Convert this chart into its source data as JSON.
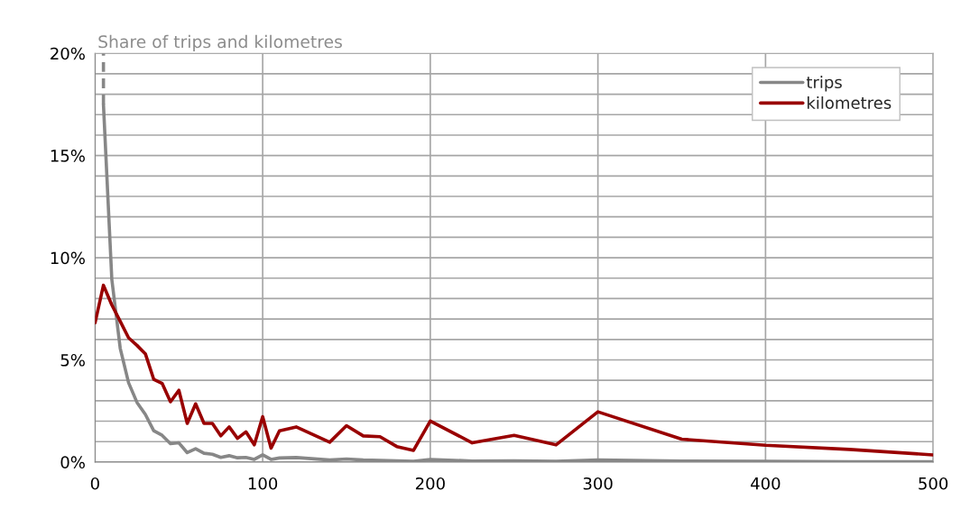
{
  "chart_data": {
    "type": "line",
    "title": "Share of trips and kilometres",
    "xlim": [
      0,
      500
    ],
    "xticks": [
      0,
      100,
      200,
      300,
      400,
      500
    ],
    "ylim": [
      0,
      20
    ],
    "yticks": [
      {
        "value": 0,
        "label": "0%"
      },
      {
        "value": 1,
        "label": null
      },
      {
        "value": 2,
        "label": null
      },
      {
        "value": 3,
        "label": null
      },
      {
        "value": 4,
        "label": null
      },
      {
        "value": 5,
        "label": "5%"
      },
      {
        "value": 6,
        "label": null
      },
      {
        "value": 7,
        "label": null
      },
      {
        "value": 8,
        "label": null
      },
      {
        "value": 9,
        "label": null
      },
      {
        "value": 10,
        "label": "10%"
      },
      {
        "value": 11,
        "label": null
      },
      {
        "value": 12,
        "label": null
      },
      {
        "value": 13,
        "label": null
      },
      {
        "value": 14,
        "label": null
      },
      {
        "value": 15,
        "label": "15%"
      },
      {
        "value": 16,
        "label": null
      },
      {
        "value": 17,
        "label": null
      },
      {
        "value": 18,
        "label": null
      },
      {
        "value": 19,
        "label": null
      },
      {
        "value": 20,
        "label": "20%"
      }
    ],
    "grid": true,
    "legend": "top right",
    "line_style": "solid",
    "marker": "none",
    "series": [
      {
        "name": "trips",
        "color": "#878787",
        "x": [
          5,
          10,
          15,
          20,
          25,
          30,
          35,
          40,
          45,
          50,
          55,
          60,
          65,
          70,
          75,
          80,
          85,
          90,
          95,
          100,
          105,
          110,
          120,
          140,
          150,
          160,
          170,
          180,
          190,
          200,
          225,
          250,
          275,
          300,
          350,
          400,
          450,
          500
        ],
        "values": [
          17.5,
          8.94,
          5.57,
          3.88,
          2.92,
          2.33,
          1.53,
          1.31,
          0.9,
          0.94,
          0.46,
          0.65,
          0.43,
          0.38,
          0.23,
          0.31,
          0.21,
          0.23,
          0.13,
          0.35,
          0.13,
          0.2,
          0.22,
          0.1,
          0.15,
          0.1,
          0.08,
          0.06,
          0.04,
          0.13,
          0.05,
          0.06,
          0.04,
          0.1,
          0.05,
          0.04,
          0.02,
          0.01
        ]
      },
      {
        "name": "kilometres",
        "color": "#990000",
        "x": [
          0,
          5,
          10,
          15,
          20,
          25,
          30,
          35,
          40,
          45,
          50,
          55,
          60,
          65,
          70,
          75,
          80,
          85,
          90,
          95,
          100,
          105,
          110,
          120,
          140,
          150,
          160,
          170,
          180,
          190,
          200,
          225,
          250,
          275,
          300,
          350,
          400,
          450,
          500
        ],
        "values": [
          6.81,
          8.65,
          7.69,
          6.89,
          6.08,
          5.71,
          5.3,
          4.05,
          3.85,
          2.95,
          3.51,
          1.89,
          2.85,
          1.89,
          1.89,
          1.28,
          1.72,
          1.16,
          1.48,
          0.84,
          2.22,
          0.68,
          1.53,
          1.72,
          0.97,
          1.78,
          1.28,
          1.24,
          0.76,
          0.57,
          2.01,
          0.94,
          1.31,
          0.84,
          2.46,
          1.12,
          0.82,
          0.62,
          0.35
        ]
      },
      {
        "color": "#878787",
        "line_style": "dashed",
        "x": [
          5,
          5
        ],
        "values": [
          17.5,
          20
        ]
      }
    ]
  }
}
